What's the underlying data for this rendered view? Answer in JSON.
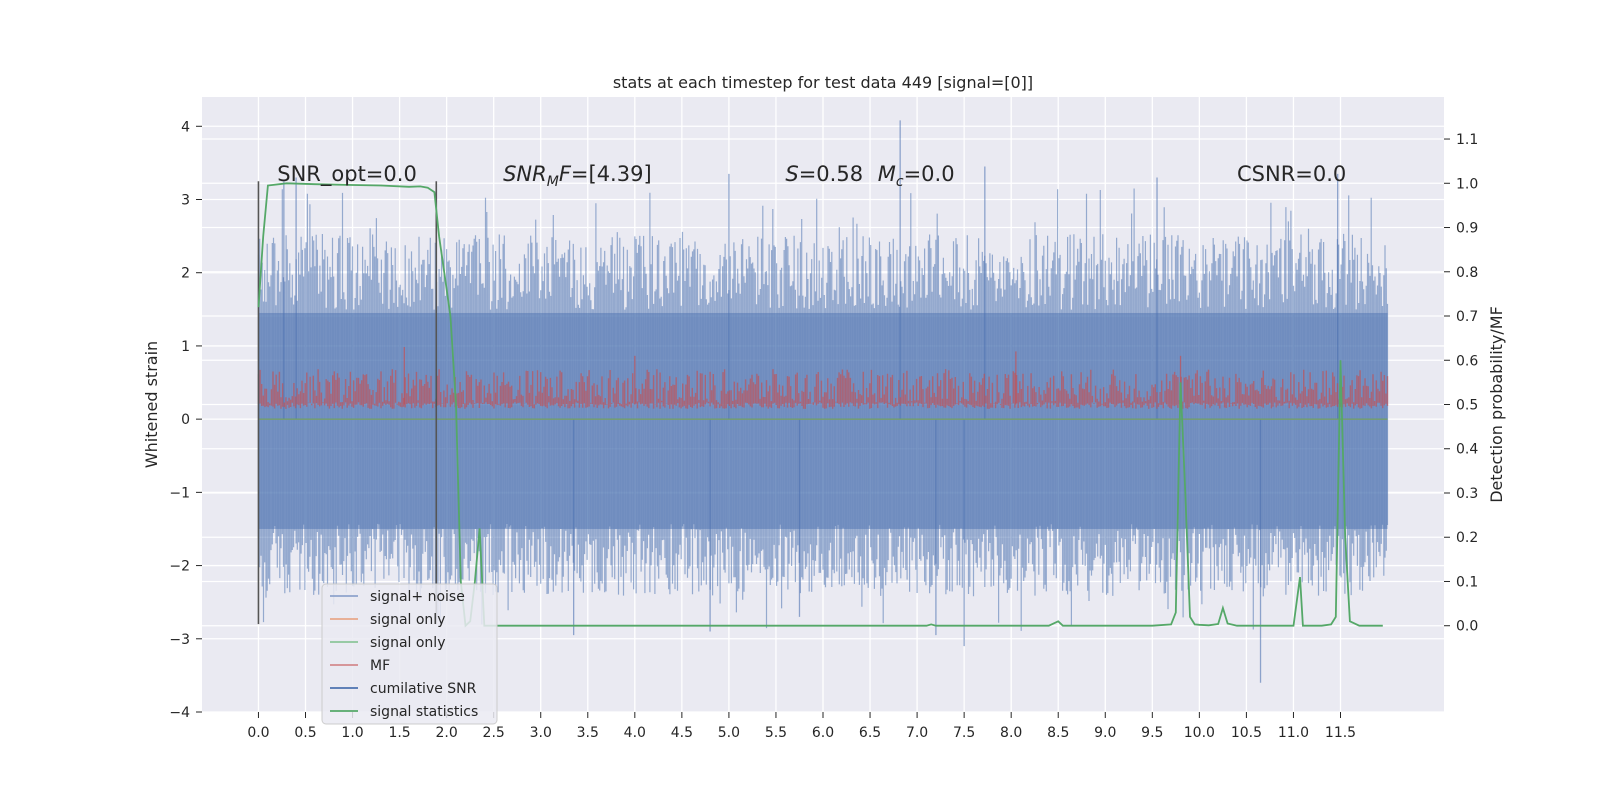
{
  "chart_data": {
    "type": "line",
    "title": "stats at each timestep for test data 449 [signal=[0]]",
    "ylabel": "Whitened strain",
    "y2label": "Detection probability/MF",
    "xlim": [
      -0.6,
      12.6
    ],
    "ylim": [
      -4.0,
      4.4
    ],
    "y2lim": [
      -0.195,
      1.195
    ],
    "grid": true,
    "legend_position": "lower-left",
    "x_ticks": [
      0.0,
      0.5,
      1.0,
      1.5,
      2.0,
      2.5,
      3.0,
      3.5,
      4.0,
      4.5,
      5.0,
      5.5,
      6.0,
      6.5,
      7.0,
      7.5,
      8.0,
      8.5,
      9.0,
      9.5,
      10.0,
      10.5,
      11.0,
      11.5
    ],
    "x_tick_labels": [
      "0.0",
      "0.5",
      "1.0",
      "1.5",
      "2.0",
      "2.5",
      "3.0",
      "3.5",
      "4.0",
      "4.5",
      "5.0",
      "5.5",
      "6.0",
      "6.5",
      "7.0",
      "7.5",
      "8.0",
      "8.5",
      "9.0",
      "9.5",
      "10.0",
      "10.5",
      "11.0",
      "11.5"
    ],
    "y_ticks": [
      -4,
      -3,
      -2,
      -1,
      0,
      1,
      2,
      3,
      4
    ],
    "y_tick_labels": [
      "−4",
      "−3",
      "−2",
      "−1",
      "0",
      "1",
      "2",
      "3",
      "4"
    ],
    "y2_ticks": [
      0.0,
      0.1,
      0.2,
      0.3,
      0.4,
      0.5,
      0.6,
      0.7,
      0.8,
      0.9,
      1.0,
      1.1
    ],
    "y2_tick_labels": [
      "0.0",
      "0.1",
      "0.2",
      "0.3",
      "0.4",
      "0.5",
      "0.6",
      "0.7",
      "0.8",
      "0.9",
      "1.0",
      "1.1"
    ],
    "annotations": [
      {
        "kind": "plain",
        "text": "SNR_opt=0.0",
        "x": 0.2,
        "y": 3.25
      },
      {
        "kind": "snrmf",
        "main": "SNR",
        "sub": "M",
        "rest": "F=[4.39]",
        "x": 2.6,
        "y": 3.25
      },
      {
        "kind": "smc",
        "s_text": "S",
        "s_val": "=0.58   ",
        "m_text": "M",
        "m_sub": "c",
        "m_val": "=0.0",
        "x": 5.6,
        "y": 3.25
      },
      {
        "kind": "plain",
        "text": "CSNR=0.0",
        "x": 10.4,
        "y": 3.25
      }
    ],
    "markers": {
      "x": [
        0.0,
        1.89
      ],
      "y_range": [
        -2.8,
        3.25
      ],
      "color": "#555555"
    },
    "series": [
      {
        "name": "signal+ noise",
        "color": "#4c72b0",
        "axis": "left",
        "kind": "noise_band",
        "x_range": [
          0.0,
          12.0
        ],
        "envelope": [
          -2.2,
          2.3
        ],
        "peaks": [
          [
            0.27,
            3.25
          ],
          [
            0.4,
            3.3
          ],
          [
            5.0,
            3.35
          ],
          [
            6.82,
            4.08
          ],
          [
            7.72,
            3.45
          ],
          [
            9.55,
            3.3
          ],
          [
            11.47,
            3.35
          ],
          [
            7.5,
            -3.1
          ],
          [
            10.65,
            -3.6
          ],
          [
            3.35,
            -2.95
          ],
          [
            4.8,
            -2.9
          ],
          [
            7.2,
            -2.95
          ],
          [
            5.75,
            -2.7
          ]
        ]
      },
      {
        "name": "signal only",
        "color": "#dd8452",
        "axis": "left",
        "kind": "flat",
        "value": 0.0,
        "x_range": [
          0.0,
          12.0
        ]
      },
      {
        "name": "signal only",
        "color": "#55a868",
        "axis": "left",
        "kind": "flat",
        "value": 0.0,
        "x_range": [
          0.0,
          12.0
        ]
      },
      {
        "name": "MF",
        "color": "#c44e52",
        "axis": "right",
        "kind": "mf_band",
        "x_range": [
          0.0,
          12.0
        ],
        "envelope": [
          0.5,
          0.58
        ],
        "peaks": [
          [
            1.55,
            0.63
          ],
          [
            4.0,
            0.61
          ],
          [
            8.05,
            0.62
          ],
          [
            9.8,
            0.61
          ]
        ]
      },
      {
        "name": "cumilative SNR",
        "color": "#4c72b0",
        "axis": "left",
        "kind": "none"
      },
      {
        "name": "signal statistics",
        "color": "#55a868",
        "axis": "right",
        "kind": "line",
        "x": [
          0.0,
          0.05,
          0.1,
          0.3,
          0.6,
          1.0,
          1.3,
          1.6,
          1.72,
          1.8,
          1.87,
          1.92,
          1.98,
          2.04,
          2.1,
          2.15,
          2.2,
          2.25,
          2.3,
          2.35,
          2.4,
          2.5,
          3.0,
          4.0,
          5.0,
          6.0,
          7.0,
          7.1,
          7.15,
          7.2,
          7.3,
          8.4,
          8.5,
          8.55,
          8.6,
          9.5,
          9.7,
          9.75,
          9.8,
          9.85,
          9.9,
          9.95,
          10.0,
          10.1,
          10.2,
          10.25,
          10.3,
          10.4,
          10.5,
          11.0,
          11.07,
          11.1,
          11.2,
          11.3,
          11.4,
          11.45,
          11.5,
          11.55,
          11.6,
          11.7,
          11.8,
          11.9,
          11.95
        ],
        "y": [
          0.72,
          0.88,
          0.995,
          1.0,
          0.998,
          0.996,
          0.995,
          0.992,
          0.993,
          0.99,
          0.98,
          0.88,
          0.79,
          0.7,
          0.5,
          0.1,
          0.0,
          0.01,
          0.1,
          0.22,
          0.0,
          0.0,
          0.0,
          0.0,
          0.0,
          0.0,
          0.0,
          0.0,
          0.003,
          0.0,
          0.0,
          0.0,
          0.01,
          0.0,
          0.0,
          0.0,
          0.003,
          0.03,
          0.55,
          0.3,
          0.02,
          0.003,
          0.002,
          0.001,
          0.004,
          0.04,
          0.005,
          0.0,
          0.0,
          0.0,
          0.11,
          0.0,
          0.0,
          0.0,
          0.003,
          0.02,
          0.6,
          0.2,
          0.01,
          0.0,
          0.0,
          0.0,
          0.0
        ]
      }
    ]
  },
  "legend": {
    "items": [
      {
        "label": "signal+ noise",
        "color": "#8ea3cc"
      },
      {
        "label": "signal only",
        "color": "#e8a88a"
      },
      {
        "label": "signal only",
        "color": "#8cc59a"
      },
      {
        "label": "MF",
        "color": "#d38a8d"
      },
      {
        "label": "cumilative SNR",
        "color": "#4c72b0"
      },
      {
        "label": "signal statistics",
        "color": "#55a868"
      }
    ]
  },
  "colors": {
    "background": "#ffffff",
    "plot_area": "#eaeaf2",
    "grid": "#ffffff"
  }
}
